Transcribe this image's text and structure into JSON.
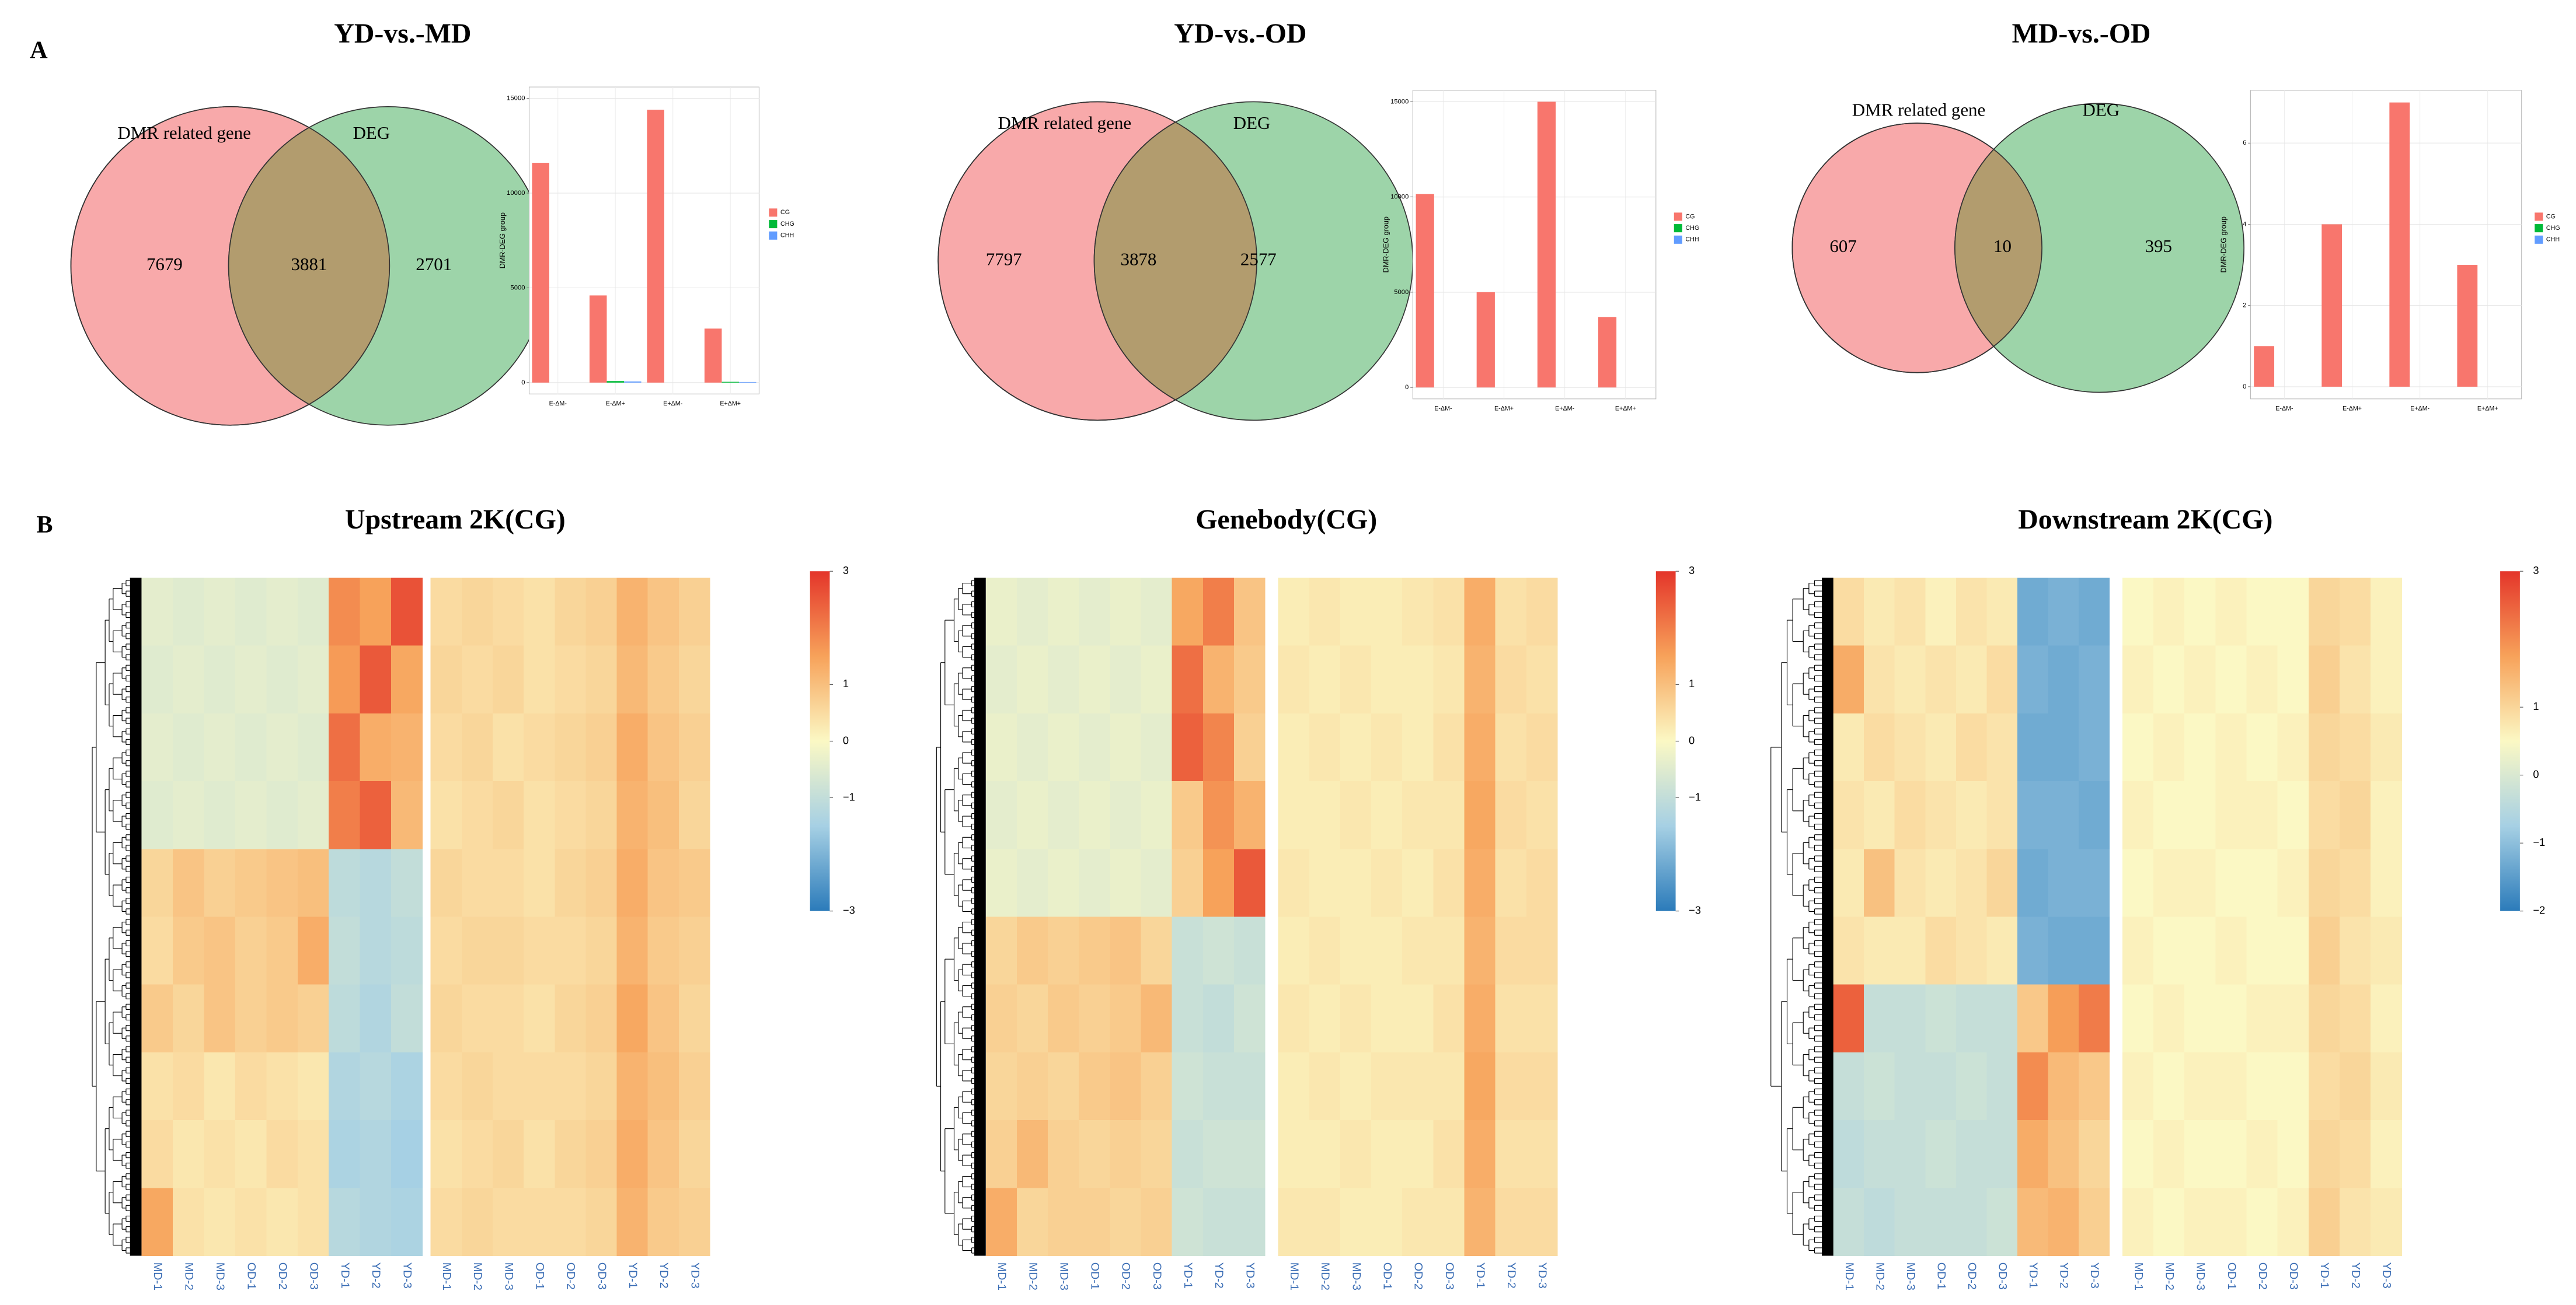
{
  "panels": [
    "A",
    "B"
  ],
  "chart_data": [
    {
      "type": "venn",
      "title": "YD-vs.-MD",
      "set_labels": [
        "DMR related gene",
        "DEG"
      ],
      "values": [
        7679,
        3881,
        2701
      ],
      "colors": [
        "#f8a9aa",
        "#9dd4a9",
        "#b29c6e"
      ]
    },
    {
      "type": "bar",
      "ylabel": "DMR-DEG group",
      "categories": [
        "E-ΔM-",
        "E-ΔM+",
        "E+ΔM-",
        "E+ΔM+"
      ],
      "series": [
        {
          "name": "CG",
          "color": "#f8766d",
          "values": [
            11600,
            4600,
            14400,
            2850
          ]
        },
        {
          "name": "CHG",
          "color": "#00ba38",
          "values": [
            0,
            80,
            0,
            40
          ]
        },
        {
          "name": "CHH",
          "color": "#619cff",
          "values": [
            0,
            60,
            0,
            30
          ]
        }
      ],
      "ylim": [
        -600,
        15600
      ],
      "yticks": [
        0,
        5000,
        10000,
        15000
      ],
      "grid": true,
      "legend": "right"
    },
    {
      "type": "venn",
      "title": "YD-vs.-OD",
      "set_labels": [
        "DMR related gene",
        "DEG"
      ],
      "values": [
        7797,
        3878,
        2577
      ],
      "colors": [
        "#f8a9aa",
        "#9dd4a9",
        "#b29c6e"
      ]
    },
    {
      "type": "bar",
      "ylabel": "DMR-DEG group",
      "categories": [
        "E-ΔM-",
        "E-ΔM+",
        "E+ΔM-",
        "E+ΔM+"
      ],
      "series": [
        {
          "name": "CG",
          "color": "#f8766d",
          "values": [
            10150,
            5000,
            15000,
            3700
          ]
        },
        {
          "name": "CHG",
          "color": "#00ba38",
          "values": [
            0,
            0,
            0,
            0
          ]
        },
        {
          "name": "CHH",
          "color": "#619cff",
          "values": [
            0,
            0,
            0,
            0
          ]
        }
      ],
      "ylim": [
        -600,
        15600
      ],
      "yticks": [
        0,
        5000,
        10000,
        15000
      ],
      "grid": true,
      "legend": "right"
    },
    {
      "type": "venn",
      "title": "MD-vs.-OD",
      "set_labels": [
        "DMR related gene",
        "DEG"
      ],
      "values": [
        607,
        10,
        395
      ],
      "colors": [
        "#f8a9aa",
        "#9dd4a9",
        "#b29c6e"
      ]
    },
    {
      "type": "bar",
      "ylabel": "DMR-DEG group",
      "categories": [
        "E-ΔM-",
        "E-ΔM+",
        "E+ΔM-",
        "E+ΔM+"
      ],
      "series": [
        {
          "name": "CG",
          "color": "#f8766d",
          "values": [
            1,
            4,
            7,
            3
          ]
        },
        {
          "name": "CHG",
          "color": "#00ba38",
          "values": [
            0,
            0,
            0,
            0
          ]
        },
        {
          "name": "CHH",
          "color": "#619cff",
          "values": [
            0,
            0,
            0,
            0
          ]
        }
      ],
      "ylim": [
        -0.3,
        7.3
      ],
      "yticks": [
        0,
        2,
        4,
        6
      ],
      "grid": true,
      "legend": "right"
    },
    {
      "type": "heatmap",
      "title": "Upstream 2K(CG)",
      "colorscale": [
        "#2b7bba",
        "#a6d0e4",
        "#fbf8c4",
        "#f7a25a",
        "#e4352a"
      ],
      "zlim": [
        -3,
        3
      ],
      "zticks": [
        3,
        1,
        0,
        {
          "value": -1,
          "label": "−1"
        },
        {
          "value": -3,
          "label": "−3"
        }
      ],
      "matrices": [
        {
          "columns": [
            "MD-1",
            "MD-2",
            "MD-3",
            "OD-1",
            "OD-2",
            "OD-3",
            "YD-1",
            "YD-2",
            "YD-3"
          ],
          "values": [
            [
              -0.4,
              -0.5,
              -0.4,
              -0.5,
              -0.4,
              -0.5,
              1.8,
              1.5,
              2.6
            ],
            [
              -0.5,
              -0.4,
              -0.5,
              -0.4,
              -0.5,
              -0.4,
              1.6,
              2.5,
              1.4
            ],
            [
              -0.4,
              -0.5,
              -0.4,
              -0.5,
              -0.4,
              -0.5,
              2.2,
              1.3,
              1.2
            ],
            [
              -0.5,
              -0.4,
              -0.5,
              -0.4,
              -0.5,
              -0.4,
              2.0,
              2.4,
              1.1
            ],
            [
              0.6,
              0.9,
              0.7,
              0.8,
              0.9,
              1.0,
              -1.1,
              -1.2,
              -1.0
            ],
            [
              0.5,
              0.8,
              0.9,
              0.7,
              0.8,
              1.3,
              -1.0,
              -1.2,
              -1.1
            ],
            [
              0.8,
              0.6,
              0.9,
              0.7,
              0.8,
              0.7,
              -1.1,
              -1.3,
              -1.0
            ],
            [
              0.4,
              0.5,
              0.3,
              0.5,
              0.4,
              0.3,
              -1.3,
              -1.2,
              -1.4
            ],
            [
              0.5,
              0.3,
              0.4,
              0.3,
              0.5,
              0.4,
              -1.4,
              -1.3,
              -1.5
            ],
            [
              1.4,
              0.4,
              0.3,
              0.4,
              0.3,
              0.4,
              -1.2,
              -1.3,
              -1.4
            ]
          ]
        },
        {
          "columns": [
            "MD-1",
            "MD-2",
            "MD-3",
            "OD-1",
            "OD-2",
            "OD-3",
            "YD-1",
            "YD-2",
            "YD-3"
          ],
          "values": [
            [
              0.5,
              0.6,
              0.5,
              0.4,
              0.6,
              0.7,
              1.2,
              0.9,
              0.7
            ],
            [
              0.6,
              0.5,
              0.6,
              0.4,
              0.5,
              0.6,
              1.1,
              0.8,
              0.6
            ],
            [
              0.5,
              0.6,
              0.4,
              0.5,
              0.6,
              0.7,
              1.3,
              0.9,
              0.7
            ],
            [
              0.4,
              0.5,
              0.6,
              0.4,
              0.5,
              0.6,
              1.2,
              1.0,
              0.6
            ],
            [
              0.6,
              0.5,
              0.5,
              0.4,
              0.6,
              0.7,
              1.3,
              0.9,
              0.8
            ],
            [
              0.5,
              0.6,
              0.6,
              0.5,
              0.5,
              0.6,
              1.2,
              0.8,
              0.7
            ],
            [
              0.6,
              0.5,
              0.5,
              0.4,
              0.6,
              0.7,
              1.4,
              0.9,
              0.6
            ],
            [
              0.5,
              0.6,
              0.5,
              0.5,
              0.5,
              0.6,
              1.2,
              1.0,
              0.7
            ],
            [
              0.4,
              0.5,
              0.6,
              0.4,
              0.6,
              0.7,
              1.3,
              0.9,
              0.6
            ],
            [
              0.5,
              0.6,
              0.5,
              0.5,
              0.5,
              0.6,
              1.2,
              0.8,
              0.7
            ]
          ]
        }
      ]
    },
    {
      "type": "heatmap",
      "title": "Genebody(CG)",
      "colorscale": [
        "#2b7bba",
        "#a6d0e4",
        "#fbf8c4",
        "#f7a25a",
        "#e4352a"
      ],
      "zlim": [
        -3,
        3
      ],
      "zticks": [
        3,
        1,
        0,
        {
          "value": -1,
          "label": "−1"
        },
        {
          "value": -3,
          "label": "−3"
        }
      ],
      "matrices": [
        {
          "columns": [
            "MD-1",
            "MD-2",
            "MD-3",
            "OD-1",
            "OD-2",
            "OD-3",
            "YD-1",
            "YD-2",
            "YD-3"
          ],
          "values": [
            [
              -0.3,
              -0.4,
              -0.3,
              -0.4,
              -0.3,
              -0.4,
              1.4,
              2.0,
              0.9
            ],
            [
              -0.4,
              -0.3,
              -0.4,
              -0.3,
              -0.4,
              -0.3,
              2.2,
              1.2,
              0.8
            ],
            [
              -0.3,
              -0.4,
              -0.3,
              -0.4,
              -0.3,
              -0.4,
              2.4,
              1.9,
              0.7
            ],
            [
              -0.4,
              -0.3,
              -0.4,
              -0.3,
              -0.4,
              -0.3,
              0.8,
              1.7,
              1.2
            ],
            [
              -0.3,
              -0.4,
              -0.3,
              -0.4,
              -0.3,
              -0.4,
              0.7,
              1.5,
              2.5
            ],
            [
              0.6,
              0.8,
              0.7,
              0.8,
              0.9,
              0.6,
              -0.9,
              -0.8,
              -0.9
            ],
            [
              0.7,
              0.6,
              0.8,
              0.7,
              0.8,
              1.1,
              -0.9,
              -1.0,
              -0.8
            ],
            [
              0.6,
              0.7,
              0.6,
              0.8,
              0.9,
              0.7,
              -0.8,
              -0.9,
              -0.9
            ],
            [
              0.7,
              1.1,
              0.7,
              0.6,
              0.7,
              0.6,
              -0.9,
              -0.8,
              -0.8
            ],
            [
              1.3,
              0.6,
              0.7,
              0.7,
              0.6,
              0.7,
              -0.8,
              -0.9,
              -0.9
            ]
          ]
        },
        {
          "columns": [
            "MD-1",
            "MD-2",
            "MD-3",
            "OD-1",
            "OD-2",
            "OD-3",
            "YD-1",
            "YD-2",
            "YD-3"
          ],
          "values": [
            [
              0.2,
              0.3,
              0.2,
              0.2,
              0.3,
              0.4,
              1.3,
              0.4,
              0.5
            ],
            [
              0.3,
              0.2,
              0.3,
              0.2,
              0.2,
              0.3,
              1.2,
              0.5,
              0.4
            ],
            [
              0.2,
              0.3,
              0.2,
              0.3,
              0.2,
              0.4,
              1.3,
              0.4,
              0.5
            ],
            [
              0.2,
              0.2,
              0.3,
              0.2,
              0.3,
              0.3,
              1.4,
              0.5,
              0.4
            ],
            [
              0.3,
              0.2,
              0.2,
              0.3,
              0.2,
              0.4,
              1.3,
              0.4,
              0.5
            ],
            [
              0.2,
              0.3,
              0.2,
              0.2,
              0.3,
              0.3,
              1.2,
              0.5,
              0.5
            ],
            [
              0.3,
              0.2,
              0.3,
              0.2,
              0.2,
              0.4,
              1.3,
              0.4,
              0.4
            ],
            [
              0.2,
              0.3,
              0.2,
              0.3,
              0.3,
              0.3,
              1.4,
              0.5,
              0.5
            ],
            [
              0.2,
              0.2,
              0.3,
              0.2,
              0.2,
              0.4,
              1.3,
              0.4,
              0.4
            ],
            [
              0.3,
              0.3,
              0.2,
              0.2,
              0.3,
              0.3,
              1.2,
              0.5,
              0.5
            ]
          ]
        }
      ]
    },
    {
      "type": "heatmap",
      "title": "Downstream 2K(CG)",
      "colorscale": [
        "#2b7bba",
        "#a6d0e4",
        "#fbf8c4",
        "#f7a25a",
        "#e4352a"
      ],
      "zlim": [
        -2,
        3
      ],
      "zticks": [
        3,
        1,
        0,
        {
          "value": -1,
          "label": "−1"
        },
        {
          "value": -2,
          "label": "−2"
        }
      ],
      "matrices": [
        {
          "columns": [
            "MD-1",
            "MD-2",
            "MD-3",
            "OD-1",
            "OD-2",
            "OD-3",
            "YD-1",
            "YD-2",
            "YD-3"
          ],
          "values": [
            [
              0.9,
              0.7,
              0.8,
              0.6,
              0.8,
              0.7,
              -1.3,
              -1.2,
              -1.3
            ],
            [
              1.6,
              0.8,
              0.7,
              0.8,
              0.7,
              0.9,
              -1.2,
              -1.3,
              -1.2
            ],
            [
              0.7,
              0.9,
              0.8,
              0.7,
              0.9,
              0.8,
              -1.3,
              -1.3,
              -1.2
            ],
            [
              0.8,
              0.7,
              0.9,
              0.8,
              0.7,
              0.8,
              -1.2,
              -1.2,
              -1.3
            ],
            [
              0.7,
              1.3,
              0.8,
              0.7,
              0.8,
              1.0,
              -1.3,
              -1.2,
              -1.2
            ],
            [
              0.8,
              0.7,
              0.7,
              0.9,
              0.8,
              0.7,
              -1.2,
              -1.3,
              -1.3
            ],
            [
              2.5,
              -0.3,
              -0.3,
              -0.2,
              -0.3,
              -0.3,
              1.2,
              1.8,
              2.2
            ],
            [
              -0.3,
              -0.2,
              -0.3,
              -0.3,
              -0.2,
              -0.3,
              2.0,
              1.4,
              1.2
            ],
            [
              -0.4,
              -0.3,
              -0.3,
              -0.2,
              -0.3,
              -0.3,
              1.6,
              1.3,
              1.0
            ],
            [
              -0.3,
              -0.4,
              -0.3,
              -0.3,
              -0.3,
              -0.2,
              1.4,
              1.5,
              1.1
            ]
          ]
        },
        {
          "columns": [
            "MD-1",
            "MD-2",
            "MD-3",
            "OD-1",
            "OD-2",
            "OD-3",
            "YD-1",
            "YD-2",
            "YD-3"
          ],
          "values": [
            [
              0.5,
              0.6,
              0.5,
              0.6,
              0.5,
              0.5,
              1.0,
              0.9,
              0.6
            ],
            [
              0.6,
              0.5,
              0.6,
              0.5,
              0.6,
              0.5,
              1.1,
              0.8,
              0.6
            ],
            [
              0.5,
              0.6,
              0.5,
              0.6,
              0.5,
              0.6,
              1.0,
              0.9,
              0.7
            ],
            [
              0.6,
              0.5,
              0.5,
              0.6,
              0.6,
              0.5,
              0.9,
              1.0,
              0.6
            ],
            [
              0.5,
              0.6,
              0.6,
              0.5,
              0.5,
              0.6,
              1.0,
              0.9,
              0.6
            ],
            [
              0.6,
              0.5,
              0.5,
              0.6,
              0.5,
              0.5,
              1.1,
              0.8,
              0.7
            ],
            [
              0.5,
              0.6,
              0.5,
              0.5,
              0.6,
              0.6,
              1.0,
              0.9,
              0.6
            ],
            [
              0.6,
              0.5,
              0.6,
              0.6,
              0.5,
              0.5,
              0.9,
              1.0,
              0.7
            ],
            [
              0.5,
              0.6,
              0.5,
              0.5,
              0.6,
              0.5,
              1.0,
              0.9,
              0.6
            ],
            [
              0.6,
              0.5,
              0.6,
              0.6,
              0.5,
              0.6,
              1.1,
              0.8,
              0.7
            ]
          ]
        }
      ]
    }
  ]
}
